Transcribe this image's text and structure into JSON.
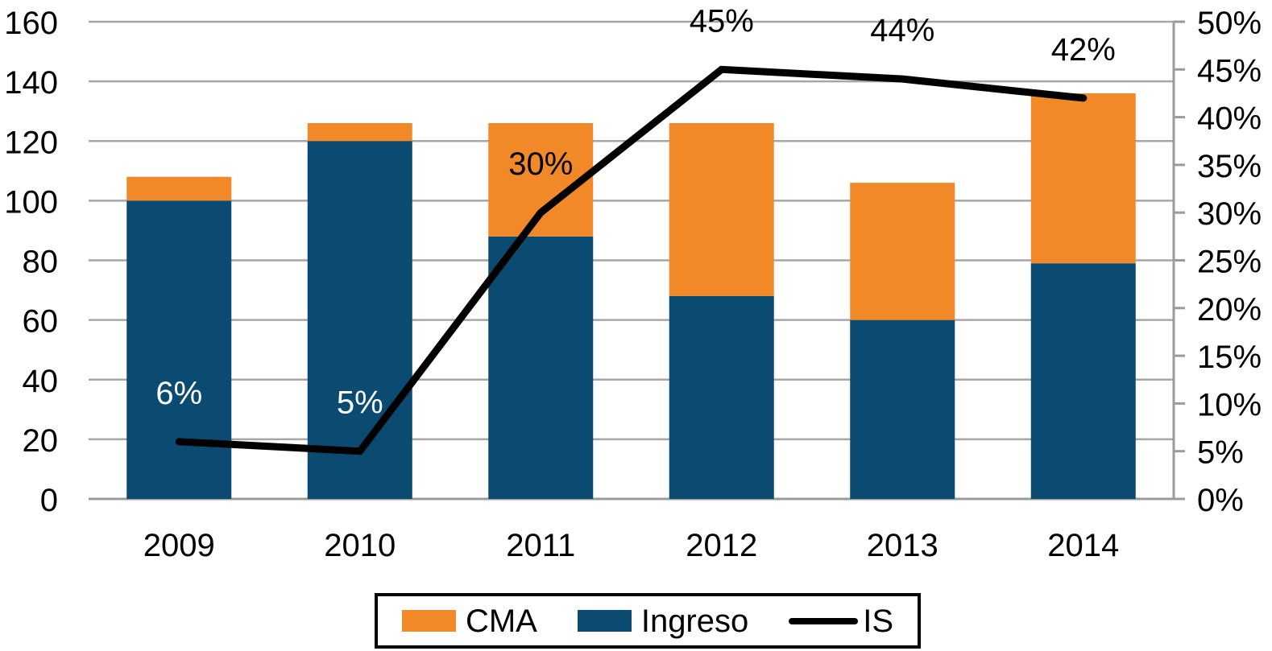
{
  "chart_data": {
    "type": "bar+line",
    "title": "",
    "categories": [
      "2009",
      "2010",
      "2011",
      "2012",
      "2013",
      "2014"
    ],
    "series": [
      {
        "name": "Ingreso",
        "type": "bar",
        "axis": "left",
        "color": "#0C4B71",
        "values": [
          100,
          120,
          88,
          68,
          60,
          79
        ]
      },
      {
        "name": "CMA",
        "type": "bar",
        "axis": "left",
        "color": "#F28928",
        "values": [
          8,
          6,
          38,
          58,
          46,
          57
        ]
      },
      {
        "name": "IS",
        "type": "line",
        "axis": "right",
        "color": "#000000",
        "values": [
          6,
          5,
          30,
          45,
          44,
          42
        ],
        "point_labels": [
          "6%",
          "5%",
          "30%",
          "45%",
          "44%",
          "42%"
        ],
        "point_label_colors": [
          "#FFFFFF",
          "#FFFFFF",
          "#000000",
          "#000000",
          "#000000",
          "#000000"
        ]
      }
    ],
    "stacked_bar_totals": [
      108,
      126,
      126,
      126,
      106,
      136
    ],
    "left_axis": {
      "min": 0,
      "max": 160,
      "step": 20,
      "ticks": [
        "0",
        "20",
        "40",
        "60",
        "80",
        "100",
        "120",
        "140",
        "160"
      ]
    },
    "right_axis": {
      "min": 0,
      "max": 50,
      "step": 5,
      "ticks": [
        "0%",
        "5%",
        "10%",
        "15%",
        "20%",
        "25%",
        "30%",
        "35%",
        "40%",
        "45%",
        "50%"
      ]
    },
    "grid": true,
    "legend_position": "bottom",
    "legend": [
      {
        "label": "CMA",
        "swatch": "orange-rect"
      },
      {
        "label": "Ingreso",
        "swatch": "blue-rect"
      },
      {
        "label": "IS",
        "swatch": "black-line"
      }
    ]
  },
  "colors": {
    "cma_orange": "#F28928",
    "ingreso_blue": "#0C4B71",
    "is_line_black": "#000000",
    "gridline_gray": "#A6A6A6",
    "axis_gray": "#9B9B9B",
    "text_black": "#000000",
    "background": "#FFFFFF"
  }
}
